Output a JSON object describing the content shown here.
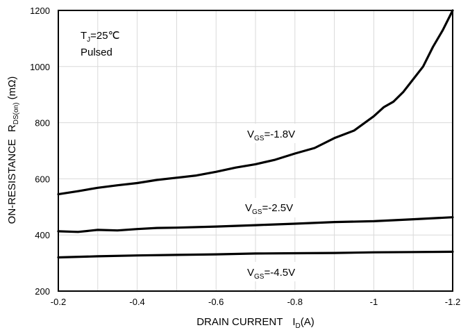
{
  "chart_data": {
    "type": "line",
    "xlabel": {
      "main": "DRAIN CURRENT",
      "var": "I",
      "sub": "D",
      "unit": "(A)"
    },
    "ylabel": {
      "main": "ON-RESISTANCE",
      "var": "R",
      "sub": "DS(on)",
      "unit": " (mΩ)"
    },
    "xlim": [
      -0.2,
      -1.2
    ],
    "ylim": [
      200,
      1200
    ],
    "x_ticks": [
      -0.2,
      -0.4,
      -0.6,
      -0.8,
      -1,
      -1.2
    ],
    "x_tick_labels": [
      "-0.2",
      "-0.4",
      "-0.6",
      "-0.8",
      "-1",
      "-1.2"
    ],
    "x_minor_grid": [
      -0.3,
      -0.5,
      -0.7,
      -0.9,
      -1.1
    ],
    "y_ticks": [
      200,
      400,
      600,
      800,
      1000,
      1200
    ],
    "y_tick_labels": [
      "200",
      "400",
      "600",
      "800",
      "1000",
      "1200"
    ],
    "grid": true,
    "annotation": {
      "line1_var": "T",
      "line1_sub": "J",
      "line1_rest": "=25℃",
      "line2": "Pulsed"
    },
    "series": [
      {
        "name": "VGS=-1.8V",
        "label": {
          "var": "V",
          "sub": "GS",
          "rest": "=-1.8V"
        },
        "x": [
          -0.2,
          -0.25,
          -0.3,
          -0.35,
          -0.4,
          -0.45,
          -0.5,
          -0.55,
          -0.6,
          -0.65,
          -0.7,
          -0.75,
          -0.8,
          -0.85,
          -0.9,
          -0.95,
          -1.0,
          -1.025,
          -1.05,
          -1.075,
          -1.1,
          -1.125,
          -1.15,
          -1.175,
          -1.2
        ],
        "y": [
          545,
          556,
          568,
          577,
          585,
          596,
          604,
          612,
          625,
          640,
          652,
          668,
          690,
          710,
          745,
          772,
          823,
          855,
          875,
          910,
          955,
          1000,
          1070,
          1130,
          1200
        ]
      },
      {
        "name": "VGS=-2.5V",
        "label": {
          "var": "V",
          "sub": "GS",
          "rest": "=-2.5V"
        },
        "x": [
          -0.2,
          -0.25,
          -0.3,
          -0.35,
          -0.4,
          -0.45,
          -0.5,
          -0.6,
          -0.7,
          -0.8,
          -0.9,
          -1.0,
          -1.1,
          -1.2
        ],
        "y": [
          413,
          411,
          418,
          416,
          421,
          425,
          426,
          430,
          435,
          440,
          446,
          449,
          456,
          463
        ]
      },
      {
        "name": "VGS=-4.5V",
        "label": {
          "var": "V",
          "sub": "GS",
          "rest": "=-4.5V"
        },
        "x": [
          -0.2,
          -0.3,
          -0.4,
          -0.5,
          -0.6,
          -0.7,
          -0.8,
          -0.9,
          -1.0,
          -1.1,
          -1.2
        ],
        "y": [
          320,
          324,
          327,
          329,
          331,
          334,
          335,
          336,
          338,
          339,
          340
        ]
      }
    ]
  }
}
